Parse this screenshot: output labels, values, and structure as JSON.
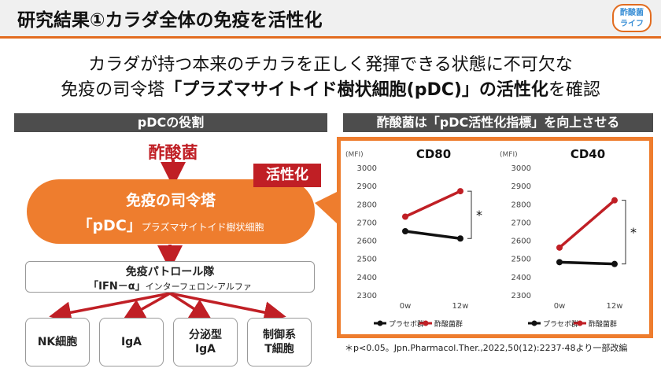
{
  "header": {
    "title": "研究結果①カラダ全体の免疫を活性化",
    "logo_line1": "酢酸菌",
    "logo_line2": "ライフ"
  },
  "headline": {
    "line1": "カラダが持つ本来のチカラを正しく発揮できる状態に不可欠な",
    "line2_a": "免疫の司令塔",
    "line2_b": "「プラズマサイトイド樹状細胞(pDC)」の活性化",
    "line2_c": "を確認"
  },
  "left_panel": {
    "band": "pDCの役割",
    "source": "酢酸菌",
    "badge": "活性化",
    "command_title": "免疫の司令塔",
    "pdc_label": "「pDC」",
    "pdc_desc": "プラズマサイトイド樹状細胞",
    "patrol_title": "免疫パトロール隊",
    "patrol_ifn": "「IFN－α」",
    "patrol_desc": "インターフェロン-アルファ",
    "targets": [
      "NK細胞",
      "IgA",
      "分泌型\nIgA",
      "制御系\nT細胞"
    ]
  },
  "right_panel": {
    "band": "酢酸菌は「pDC活性化指標」を向上させる"
  },
  "colors": {
    "orange": "#ee7d2e",
    "red": "#c01f25",
    "placebo": "#111111",
    "treatment": "#c01f25"
  },
  "chart_data": [
    {
      "type": "line",
      "title": "CD80",
      "ylabel": "(MFI)",
      "x": [
        "0w",
        "12w"
      ],
      "ylim": [
        2300,
        3000
      ],
      "yticks": [
        2300,
        2400,
        2500,
        2600,
        2700,
        2800,
        2900,
        3000
      ],
      "series": [
        {
          "name": "プラセボ群",
          "values": [
            2650,
            2610
          ]
        },
        {
          "name": "酢酸菌群",
          "values": [
            2730,
            2870
          ]
        }
      ],
      "annotation": "*",
      "legend": "bottom"
    },
    {
      "type": "line",
      "title": "CD40",
      "ylabel": "(MFI)",
      "x": [
        "0w",
        "12w"
      ],
      "ylim": [
        2300,
        3000
      ],
      "yticks": [
        2300,
        2400,
        2500,
        2600,
        2700,
        2800,
        2900,
        3000
      ],
      "series": [
        {
          "name": "プラセボ群",
          "values": [
            2480,
            2470
          ]
        },
        {
          "name": "酢酸菌群",
          "values": [
            2560,
            2820
          ]
        }
      ],
      "annotation": "*",
      "legend": "bottom"
    }
  ],
  "footnote": "＊p<0.05。Jpn.Pharmacol.Ther.,2022,50(12):2237-48より一部改編"
}
